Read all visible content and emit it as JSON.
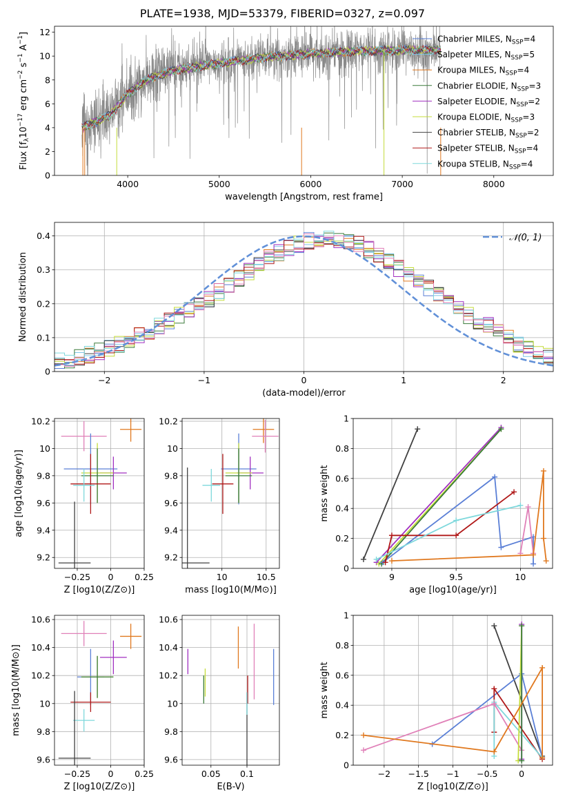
{
  "figure": {
    "title": "PLATE=1938, MJD=53379, FIBERID=0327, z=0.097"
  },
  "colors": {
    "chabrier_miles": "#5a7fd6",
    "salpeter_miles": "#7fc4e8",
    "kroupa_miles": "#e0781e",
    "chabrier_elodie": "#3a7a3a",
    "salpeter_elodie": "#a02fc0",
    "kroupa_elodie": "#c4dc3a",
    "chabrier_stelib": "#404040",
    "salpeter_stelib": "#b01818",
    "kroupa_stelib": "#7ed8dc",
    "pink": "#e080b8",
    "data_gray": "#888888",
    "gaussian": "#6190d8"
  },
  "chart_data": [
    {
      "type": "line",
      "title": "PLATE=1938, MJD=53379, FIBERID=0327, z=0.097",
      "xlabel": "wavelength [Angstrom, rest frame]",
      "ylabel": "Flux [f_λ 10^-17 erg cm^-2 s^-1 A^-1]",
      "xlim": [
        3200,
        8650
      ],
      "ylim": [
        0,
        12.5
      ],
      "xticks": [
        4000,
        5000,
        6000,
        7000,
        8000
      ],
      "yticks": [
        0,
        2,
        4,
        6,
        8,
        10,
        12
      ],
      "grid": false,
      "legend_position": "right",
      "spectrum_range": [
        3500,
        7420
      ],
      "spectrum_continuum": {
        "x": [
          3500,
          3800,
          4000,
          4200,
          4500,
          5000,
          5500,
          6000,
          6500,
          7000,
          7420
        ],
        "y": [
          4.0,
          5.0,
          6.8,
          8.0,
          8.8,
          9.4,
          9.9,
          10.2,
          10.4,
          10.5,
          10.5
        ]
      },
      "series": [
        {
          "name": "Chabrier MILES",
          "nssp": 4,
          "color_key": "chabrier_miles"
        },
        {
          "name": "Salpeter MILES",
          "nssp": 5,
          "color_key": "salpeter_miles"
        },
        {
          "name": "Kroupa MILES",
          "nssp": 4,
          "color_key": "kroupa_miles"
        },
        {
          "name": "Chabrier ELODIE",
          "nssp": 3,
          "color_key": "chabrier_elodie"
        },
        {
          "name": "Salpeter ELODIE",
          "nssp": 2,
          "color_key": "salpeter_elodie"
        },
        {
          "name": "Kroupa ELODIE",
          "nssp": 3,
          "color_key": "kroupa_elodie"
        },
        {
          "name": "Chabrier STELIB",
          "nssp": 2,
          "color_key": "chabrier_stelib"
        },
        {
          "name": "Salpeter STELIB",
          "nssp": 4,
          "color_key": "salpeter_stelib"
        },
        {
          "name": "Kroupa STELIB",
          "nssp": 4,
          "color_key": "kroupa_stelib"
        }
      ]
    },
    {
      "type": "bar",
      "xlabel": "(data-model)/error",
      "ylabel": "Normed distribution",
      "xlim": [
        -2.5,
        2.5
      ],
      "ylim": [
        0,
        0.44
      ],
      "xticks": [
        -2,
        -1,
        0,
        1,
        2
      ],
      "yticks": [
        0.0,
        0.1,
        0.2,
        0.3,
        0.4
      ],
      "grid": true,
      "legend_position": "top-right",
      "legend_label": "𝒩(0, 1)",
      "bins_start": -2.5,
      "bin_width": 0.1,
      "histogram_envelope": [
        0.03,
        0.035,
        0.04,
        0.05,
        0.06,
        0.07,
        0.08,
        0.09,
        0.105,
        0.12,
        0.135,
        0.15,
        0.165,
        0.18,
        0.195,
        0.215,
        0.235,
        0.255,
        0.275,
        0.295,
        0.315,
        0.335,
        0.35,
        0.365,
        0.375,
        0.385,
        0.39,
        0.39,
        0.39,
        0.385,
        0.375,
        0.36,
        0.345,
        0.325,
        0.305,
        0.285,
        0.265,
        0.245,
        0.225,
        0.205,
        0.185,
        0.165,
        0.15,
        0.135,
        0.115,
        0.1,
        0.08,
        0.065,
        0.055,
        0.045
      ]
    },
    {
      "type": "scatter",
      "xlabel": "Z [log10(Z/Z⊙)]",
      "ylabel": "age  [log10(age/yr)]",
      "xlim": [
        -0.42,
        0.25
      ],
      "ylim": [
        9.12,
        10.22
      ],
      "xticks": [
        -0.25,
        0.0,
        0.25
      ],
      "yticks": [
        9.2,
        9.4,
        9.6,
        9.8,
        10.0,
        10.2
      ],
      "grid": true,
      "points": [
        {
          "color_key": "pink",
          "x": -0.2,
          "xerr": 0.17,
          "y": 10.09,
          "yerr": 0.11
        },
        {
          "color_key": "kroupa_miles",
          "x": 0.15,
          "xerr": 0.08,
          "y": 10.14,
          "yerr": 0.09
        },
        {
          "color_key": "chabrier_miles",
          "x": -0.15,
          "xerr": 0.2,
          "y": 9.85,
          "yerr": 0.26
        },
        {
          "color_key": "salpeter_elodie",
          "x": 0.02,
          "xerr": 0.1,
          "y": 9.82,
          "yerr": 0.12
        },
        {
          "color_key": "kroupa_elodie",
          "x": -0.1,
          "xerr": 0.12,
          "y": 9.82,
          "yerr": 0.22
        },
        {
          "color_key": "chabrier_elodie",
          "x": -0.1,
          "xerr": 0.12,
          "y": 9.8,
          "yerr": 0.2
        },
        {
          "color_key": "salpeter_stelib",
          "x": -0.15,
          "xerr": 0.15,
          "y": 9.74,
          "yerr": 0.22
        },
        {
          "color_key": "kroupa_stelib",
          "x": -0.2,
          "xerr": 0.08,
          "y": 9.73,
          "yerr": 0.12
        },
        {
          "color_key": "chabrier_stelib",
          "x": -0.27,
          "xerr": 0.12,
          "y": 9.16,
          "yerr": 0.45
        }
      ]
    },
    {
      "type": "scatter",
      "xlabel": "mass [log10(M/M⊙)]",
      "ylabel": "",
      "xlim": [
        9.55,
        10.65
      ],
      "ylim": [
        9.12,
        10.22
      ],
      "xticks": [
        10.0,
        10.5
      ],
      "yticks": [
        9.2,
        9.4,
        9.6,
        9.8,
        10.0,
        10.2
      ],
      "grid": true,
      "points": [
        {
          "color_key": "kroupa_miles",
          "x": 10.47,
          "xerr": 0.12,
          "y": 10.14,
          "yerr": 0.1
        },
        {
          "color_key": "pink",
          "x": 10.49,
          "xerr": 0.15,
          "y": 10.09,
          "yerr": 0.12
        },
        {
          "color_key": "chabrier_miles",
          "x": 10.19,
          "xerr": 0.2,
          "y": 9.85,
          "yerr": 0.26
        },
        {
          "color_key": "salpeter_elodie",
          "x": 10.32,
          "xerr": 0.15,
          "y": 9.82,
          "yerr": 0.12
        },
        {
          "color_key": "kroupa_elodie",
          "x": 10.19,
          "xerr": 0.15,
          "y": 9.82,
          "yerr": 0.22
        },
        {
          "color_key": "chabrier_elodie",
          "x": 10.19,
          "xerr": 0.15,
          "y": 9.8,
          "yerr": 0.2
        },
        {
          "color_key": "salpeter_stelib",
          "x": 10.01,
          "xerr": 0.12,
          "y": 9.74,
          "yerr": 0.22
        },
        {
          "color_key": "kroupa_stelib",
          "x": 9.88,
          "xerr": 0.1,
          "y": 9.73,
          "yerr": 0.12
        },
        {
          "color_key": "chabrier_stelib",
          "x": 9.61,
          "xerr": 0.25,
          "y": 9.16,
          "yerr": 0.7
        }
      ]
    },
    {
      "type": "line",
      "xlabel": "age  [log10(age/yr)]",
      "ylabel": "mass weight",
      "xlim": [
        8.7,
        10.25
      ],
      "ylim": [
        0,
        1.0
      ],
      "xticks": [
        9.0,
        9.5,
        10.0
      ],
      "yticks": [
        0.0,
        0.2,
        0.4,
        0.6,
        0.8,
        1.0
      ],
      "grid": true,
      "series": [
        {
          "color_key": "chabrier_stelib",
          "points": [
            [
              8.78,
              0.06
            ],
            [
              9.2,
              0.93
            ]
          ]
        },
        {
          "color_key": "salpeter_elodie",
          "points": [
            [
              8.88,
              0.04
            ],
            [
              9.85,
              0.94
            ]
          ]
        },
        {
          "color_key": "kroupa_elodie",
          "points": [
            [
              8.9,
              0.03
            ],
            [
              9.85,
              0.93
            ]
          ]
        },
        {
          "color_key": "chabrier_elodie",
          "points": [
            [
              8.92,
              0.03
            ],
            [
              9.85,
              0.93
            ]
          ]
        },
        {
          "color_key": "chabrier_miles",
          "points": [
            [
              8.93,
              0.04
            ],
            [
              9.8,
              0.61
            ],
            [
              9.85,
              0.14
            ],
            [
              10.1,
              0.21
            ],
            [
              10.1,
              0.03
            ]
          ]
        },
        {
          "color_key": "salpeter_stelib",
          "points": [
            [
              8.95,
              0.04
            ],
            [
              9.0,
              0.22
            ],
            [
              9.5,
              0.22
            ],
            [
              9.95,
              0.51
            ]
          ]
        },
        {
          "color_key": "kroupa_stelib",
          "points": [
            [
              8.88,
              0.06
            ],
            [
              9.5,
              0.32
            ],
            [
              10.0,
              0.42
            ]
          ]
        },
        {
          "color_key": "pink",
          "points": [
            [
              10.0,
              0.1
            ],
            [
              10.06,
              0.41
            ],
            [
              10.1,
              0.1
            ]
          ]
        },
        {
          "color_key": "kroupa_miles",
          "points": [
            [
              9.0,
              0.05
            ],
            [
              10.1,
              0.09
            ],
            [
              10.18,
              0.65
            ],
            [
              10.18,
              0.2
            ],
            [
              10.2,
              0.05
            ]
          ]
        }
      ]
    },
    {
      "type": "scatter",
      "xlabel": "Z [log10(Z/Z⊙)]",
      "ylabel": "mass [log10(M/M⊙)]",
      "xlim": [
        -0.42,
        0.25
      ],
      "ylim": [
        9.56,
        10.63
      ],
      "xticks": [
        -0.25,
        0.0,
        0.25
      ],
      "yticks": [
        9.6,
        9.8,
        10.0,
        10.2,
        10.4,
        10.6
      ],
      "grid": true,
      "points": [
        {
          "color_key": "pink",
          "x": -0.2,
          "xerr": 0.17,
          "y": 10.5,
          "yerr": 0.09
        },
        {
          "color_key": "kroupa_miles",
          "x": 0.15,
          "xerr": 0.08,
          "y": 10.48,
          "yerr": 0.09
        },
        {
          "color_key": "salpeter_elodie",
          "x": 0.02,
          "xerr": 0.1,
          "y": 10.33,
          "yerr": 0.12
        },
        {
          "color_key": "chabrier_miles",
          "x": -0.15,
          "xerr": 0.1,
          "y": 10.19,
          "yerr": 0.2
        },
        {
          "color_key": "kroupa_elodie",
          "x": -0.1,
          "xerr": 0.12,
          "y": 10.19,
          "yerr": 0.15
        },
        {
          "color_key": "chabrier_elodie",
          "x": -0.1,
          "xerr": 0.12,
          "y": 10.19,
          "yerr": 0.15
        },
        {
          "color_key": "salpeter_stelib",
          "x": -0.15,
          "xerr": 0.15,
          "y": 10.01,
          "yerr": 0.07
        },
        {
          "color_key": "kroupa_stelib",
          "x": -0.2,
          "xerr": 0.08,
          "y": 9.88,
          "yerr": 0.08
        },
        {
          "color_key": "chabrier_stelib",
          "x": -0.27,
          "xerr": 0.12,
          "y": 9.61,
          "yerr": 0.48
        }
      ]
    },
    {
      "type": "scatter",
      "xlabel": "E(B-V)",
      "ylabel": "",
      "xlim": [
        0.01,
        0.145
      ],
      "ylim": [
        9.56,
        10.63
      ],
      "xticks": [
        0.05,
        0.1
      ],
      "yticks": [
        9.6,
        9.8,
        10.0,
        10.2,
        10.4,
        10.6
      ],
      "grid": true,
      "points": [
        {
          "color_key": "salpeter_elodie",
          "x": 0.018,
          "y": 10.3,
          "yerr": 0.09
        },
        {
          "color_key": "chabrier_elodie",
          "x": 0.04,
          "y": 10.1,
          "yerr": 0.1
        },
        {
          "color_key": "kroupa_elodie",
          "x": 0.042,
          "y": 10.15,
          "yerr": 0.1
        },
        {
          "color_key": "kroupa_miles",
          "x": 0.088,
          "y": 10.4,
          "yerr": 0.15
        },
        {
          "color_key": "chabrier_stelib",
          "x": 0.1,
          "y": 9.81,
          "yerr": 0.27
        },
        {
          "color_key": "salpeter_stelib",
          "x": 0.101,
          "y": 10.1,
          "yerr": 0.1
        },
        {
          "color_key": "kroupa_stelib",
          "x": 0.1,
          "y": 10.0,
          "yerr": 0.08
        },
        {
          "color_key": "pink",
          "x": 0.11,
          "y": 10.3,
          "yerr": 0.27
        },
        {
          "color_key": "chabrier_miles",
          "x": 0.137,
          "y": 10.19,
          "yerr": 0.2
        }
      ]
    },
    {
      "type": "line",
      "xlabel": "Z [log10(Z/Z⊙)]",
      "ylabel": "mass weight",
      "xlim": [
        -2.45,
        0.45
      ],
      "ylim": [
        0,
        1.0
      ],
      "xticks": [
        -2.0,
        -1.5,
        -1.0,
        -0.5,
        0.0
      ],
      "yticks": [
        0.0,
        0.2,
        0.4,
        0.6,
        0.8,
        1.0
      ],
      "grid": true,
      "series": [
        {
          "color_key": "chabrier_stelib",
          "points": [
            [
              -0.4,
              0.93
            ],
            [
              0.3,
              0.06
            ]
          ]
        },
        {
          "color_key": "chabrier_miles",
          "points": [
            [
              -1.3,
              0.14
            ],
            [
              0.0,
              0.61
            ],
            [
              0.3,
              0.05
            ]
          ]
        },
        {
          "color_key": "salpeter_stelib",
          "points": [
            [
              -0.4,
              0.22
            ],
            [
              -0.4,
              0.51
            ],
            [
              0.3,
              0.04
            ]
          ]
        },
        {
          "color_key": "kroupa_stelib",
          "points": [
            [
              -0.4,
              0.06
            ],
            [
              -0.4,
              0.42
            ],
            [
              0.3,
              0.05
            ]
          ]
        },
        {
          "color_key": "pink",
          "points": [
            [
              -2.3,
              0.1
            ],
            [
              -0.4,
              0.41
            ],
            [
              0.0,
              0.1
            ]
          ]
        },
        {
          "color_key": "salpeter_elodie",
          "points": [
            [
              0.0,
              0.04
            ],
            [
              0.0,
              0.94
            ]
          ]
        },
        {
          "color_key": "kroupa_elodie",
          "points": [
            [
              -0.05,
              0.03
            ],
            [
              0.0,
              0.93
            ]
          ]
        },
        {
          "color_key": "chabrier_elodie",
          "points": [
            [
              0.0,
              0.03
            ],
            [
              0.0,
              0.93
            ]
          ]
        },
        {
          "color_key": "kroupa_miles",
          "points": [
            [
              -2.3,
              0.2
            ],
            [
              -0.4,
              0.09
            ],
            [
              0.3,
              0.65
            ],
            [
              0.3,
              0.05
            ]
          ]
        }
      ]
    }
  ]
}
